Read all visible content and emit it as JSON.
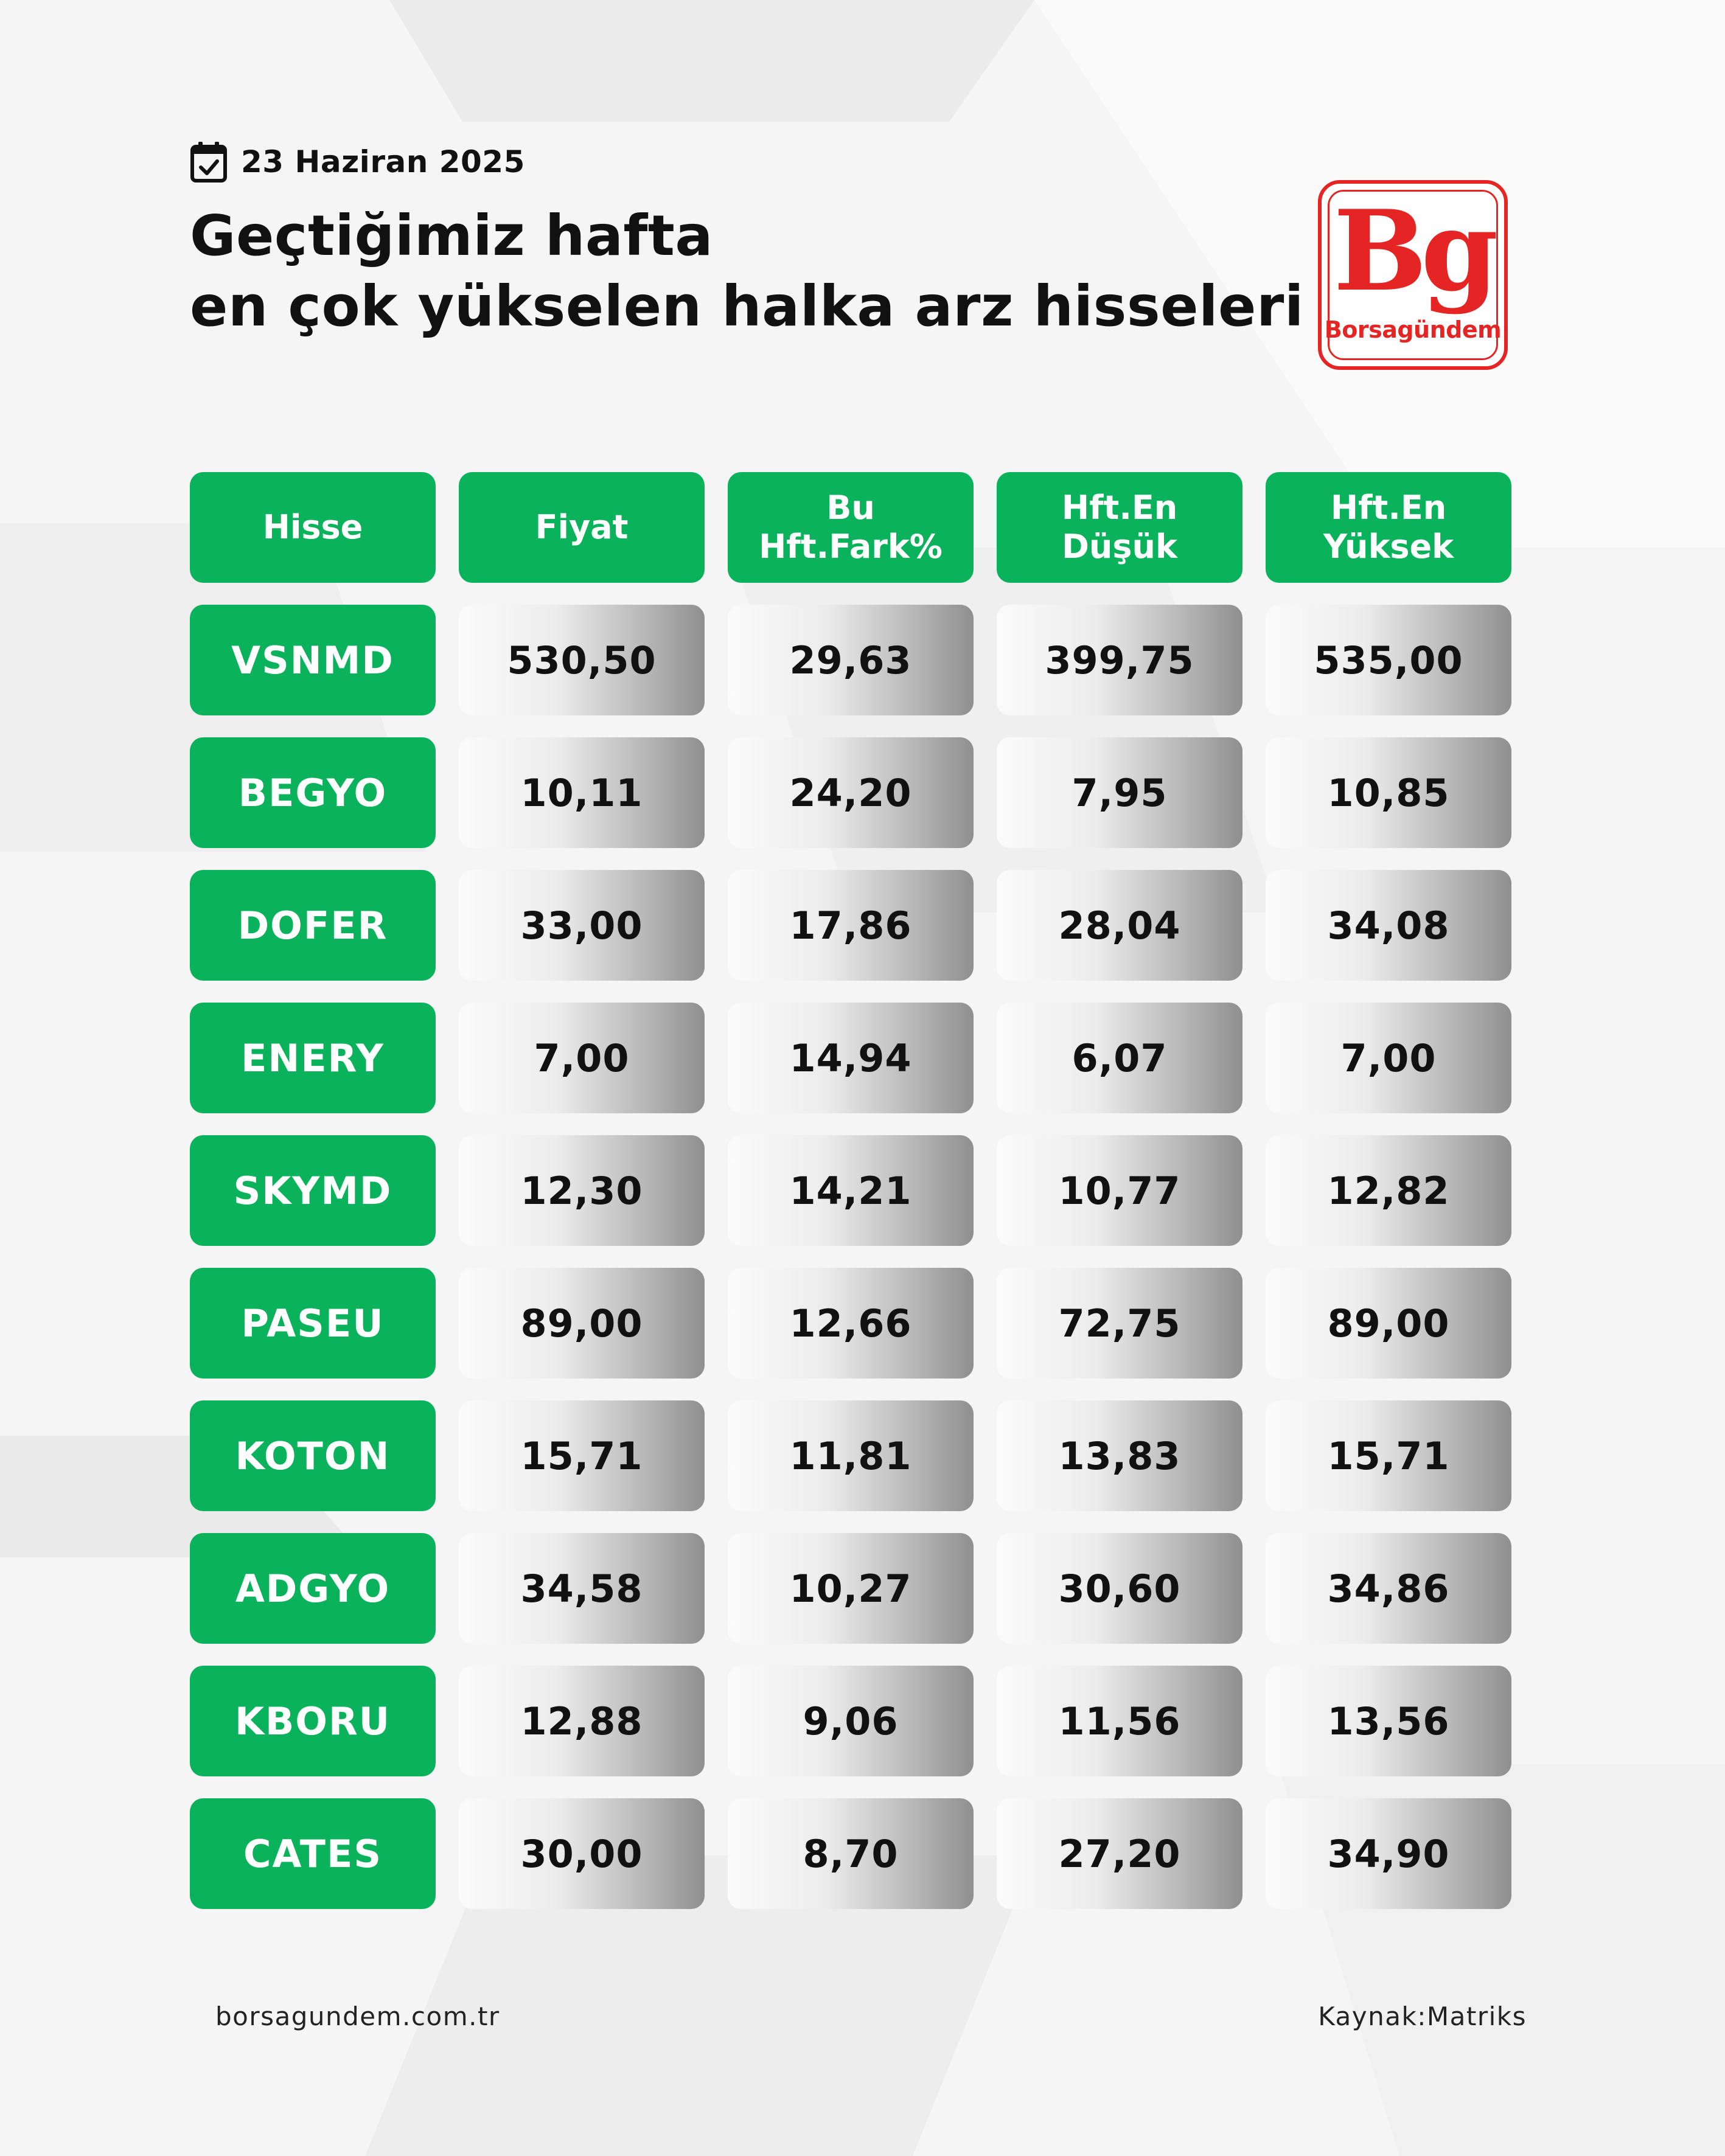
{
  "header": {
    "date": "23 Haziran 2025",
    "title_line1": "Geçtiğimiz hafta",
    "title_line2": "en çok yükselen halka arz hisseleri"
  },
  "logo": {
    "mark": "Bg",
    "name": "Borsagündem",
    "color": "#e42523"
  },
  "chart_data": {
    "type": "table",
    "columns": [
      "Hisse",
      "Fiyat",
      "Bu Hft.Fark%",
      "Hft.En Düşük",
      "Hft.En Yüksek"
    ],
    "header_lines": [
      [
        "Hisse"
      ],
      [
        "Fiyat"
      ],
      [
        "Bu",
        "Hft.Fark%"
      ],
      [
        "Hft.En",
        "Düşük"
      ],
      [
        "Hft.En",
        "Yüksek"
      ]
    ],
    "rows": [
      [
        "VSNMD",
        "530,50",
        "29,63",
        "399,75",
        "535,00"
      ],
      [
        "BEGYO",
        "10,11",
        "24,20",
        "7,95",
        "10,85"
      ],
      [
        "DOFER",
        "33,00",
        "17,86",
        "28,04",
        "34,08"
      ],
      [
        "ENERY",
        "7,00",
        "14,94",
        "6,07",
        "7,00"
      ],
      [
        "SKYMD",
        "12,30",
        "14,21",
        "10,77",
        "12,82"
      ],
      [
        "PASEU",
        "89,00",
        "12,66",
        "72,75",
        "89,00"
      ],
      [
        "KOTON",
        "15,71",
        "11,81",
        "13,83",
        "15,71"
      ],
      [
        "ADGYO",
        "34,58",
        "10,27",
        "30,60",
        "34,86"
      ],
      [
        "KBORU",
        "12,88",
        "9,06",
        "11,56",
        "13,56"
      ],
      [
        "CATES",
        "30,00",
        "8,70",
        "27,20",
        "34,90"
      ]
    ],
    "colors": {
      "header_bg": "#0ab25c",
      "ticker_bg": "#0ab25c",
      "text_on_green": "#ffffff",
      "value_text": "#111111"
    }
  },
  "footer": {
    "website": "borsagundem.com.tr",
    "source": "Kaynak:Matriks"
  },
  "icons": {
    "date_icon": "calendar-check-icon"
  }
}
